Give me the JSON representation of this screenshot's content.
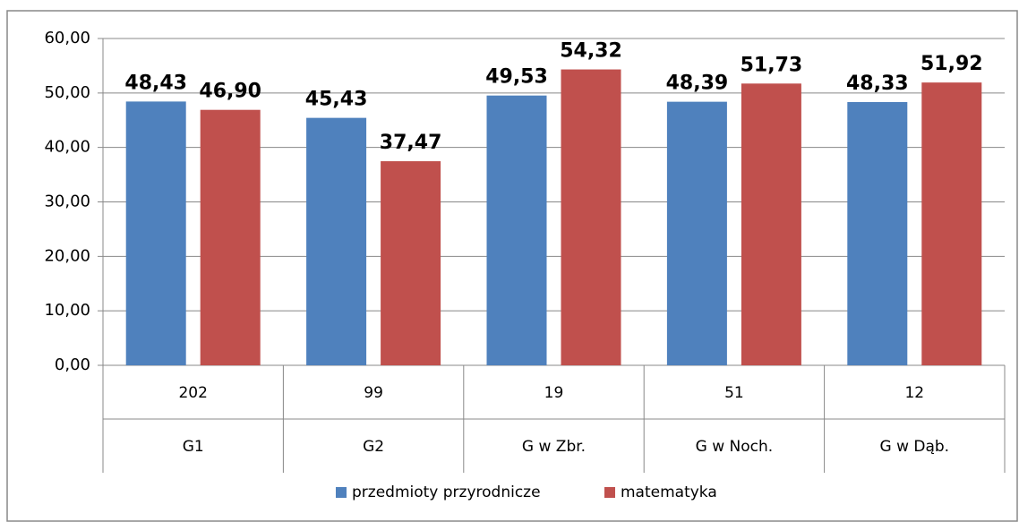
{
  "chart_data": {
    "type": "bar",
    "category_codes": [
      202,
      99,
      19,
      51,
      12
    ],
    "categories": [
      "G1",
      "G2",
      "G w Zbr.",
      "G w Noch.",
      "G w Dąb."
    ],
    "series": [
      {
        "name": "przedmioty przyrodnicze",
        "color": "#4f81bd",
        "values": [
          48.43,
          45.43,
          49.53,
          48.39,
          48.33
        ],
        "value_labels": [
          "48,43",
          "45,43",
          "49,53",
          "48,39",
          "48,33"
        ]
      },
      {
        "name": "matematyka",
        "color": "#c0504d",
        "values": [
          46.9,
          37.47,
          54.32,
          51.73,
          51.92
        ],
        "value_labels": [
          "46,90",
          "37,47",
          "54,32",
          "51,73",
          "51,92"
        ]
      }
    ],
    "ylim": [
      0,
      60
    ],
    "yticks": [
      {
        "value": 0,
        "label": "0,00"
      },
      {
        "value": 10,
        "label": "10,00"
      },
      {
        "value": 20,
        "label": "20,00"
      },
      {
        "value": 30,
        "label": "30,00"
      },
      {
        "value": 40,
        "label": "40,00"
      },
      {
        "value": 50,
        "label": "50,00"
      },
      {
        "value": 60,
        "label": "60,00"
      }
    ],
    "grid": true,
    "legend": "bottom"
  }
}
